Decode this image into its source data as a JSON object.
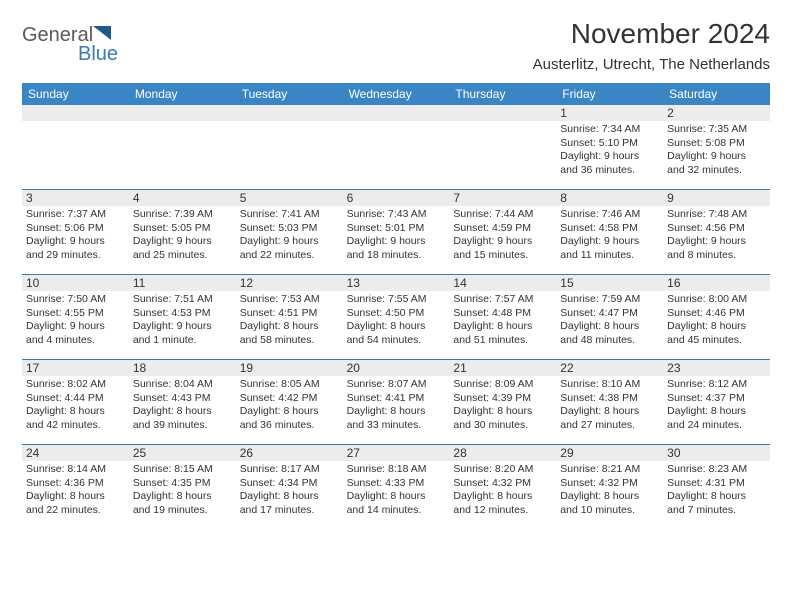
{
  "brand": {
    "part1": "General",
    "part2": "Blue"
  },
  "title": "November 2024",
  "location": "Austerlitz, Utrecht, The Netherlands",
  "colors": {
    "header_bg": "#3a86c4",
    "header_text": "#ffffff",
    "band_bg": "#ececec",
    "rule": "#3a7ab8",
    "text": "#333333",
    "brand_gray": "#5a5a5a",
    "brand_blue": "#3a7ab8"
  },
  "days_of_week": [
    "Sunday",
    "Monday",
    "Tuesday",
    "Wednesday",
    "Thursday",
    "Friday",
    "Saturday"
  ],
  "weeks": [
    [
      {
        "blank": true
      },
      {
        "blank": true
      },
      {
        "blank": true
      },
      {
        "blank": true
      },
      {
        "blank": true
      },
      {
        "n": "1",
        "sr": "Sunrise: 7:34 AM",
        "ss": "Sunset: 5:10 PM",
        "dl": "Daylight: 9 hours and 36 minutes."
      },
      {
        "n": "2",
        "sr": "Sunrise: 7:35 AM",
        "ss": "Sunset: 5:08 PM",
        "dl": "Daylight: 9 hours and 32 minutes."
      }
    ],
    [
      {
        "n": "3",
        "sr": "Sunrise: 7:37 AM",
        "ss": "Sunset: 5:06 PM",
        "dl": "Daylight: 9 hours and 29 minutes."
      },
      {
        "n": "4",
        "sr": "Sunrise: 7:39 AM",
        "ss": "Sunset: 5:05 PM",
        "dl": "Daylight: 9 hours and 25 minutes."
      },
      {
        "n": "5",
        "sr": "Sunrise: 7:41 AM",
        "ss": "Sunset: 5:03 PM",
        "dl": "Daylight: 9 hours and 22 minutes."
      },
      {
        "n": "6",
        "sr": "Sunrise: 7:43 AM",
        "ss": "Sunset: 5:01 PM",
        "dl": "Daylight: 9 hours and 18 minutes."
      },
      {
        "n": "7",
        "sr": "Sunrise: 7:44 AM",
        "ss": "Sunset: 4:59 PM",
        "dl": "Daylight: 9 hours and 15 minutes."
      },
      {
        "n": "8",
        "sr": "Sunrise: 7:46 AM",
        "ss": "Sunset: 4:58 PM",
        "dl": "Daylight: 9 hours and 11 minutes."
      },
      {
        "n": "9",
        "sr": "Sunrise: 7:48 AM",
        "ss": "Sunset: 4:56 PM",
        "dl": "Daylight: 9 hours and 8 minutes."
      }
    ],
    [
      {
        "n": "10",
        "sr": "Sunrise: 7:50 AM",
        "ss": "Sunset: 4:55 PM",
        "dl": "Daylight: 9 hours and 4 minutes."
      },
      {
        "n": "11",
        "sr": "Sunrise: 7:51 AM",
        "ss": "Sunset: 4:53 PM",
        "dl": "Daylight: 9 hours and 1 minute."
      },
      {
        "n": "12",
        "sr": "Sunrise: 7:53 AM",
        "ss": "Sunset: 4:51 PM",
        "dl": "Daylight: 8 hours and 58 minutes."
      },
      {
        "n": "13",
        "sr": "Sunrise: 7:55 AM",
        "ss": "Sunset: 4:50 PM",
        "dl": "Daylight: 8 hours and 54 minutes."
      },
      {
        "n": "14",
        "sr": "Sunrise: 7:57 AM",
        "ss": "Sunset: 4:48 PM",
        "dl": "Daylight: 8 hours and 51 minutes."
      },
      {
        "n": "15",
        "sr": "Sunrise: 7:59 AM",
        "ss": "Sunset: 4:47 PM",
        "dl": "Daylight: 8 hours and 48 minutes."
      },
      {
        "n": "16",
        "sr": "Sunrise: 8:00 AM",
        "ss": "Sunset: 4:46 PM",
        "dl": "Daylight: 8 hours and 45 minutes."
      }
    ],
    [
      {
        "n": "17",
        "sr": "Sunrise: 8:02 AM",
        "ss": "Sunset: 4:44 PM",
        "dl": "Daylight: 8 hours and 42 minutes."
      },
      {
        "n": "18",
        "sr": "Sunrise: 8:04 AM",
        "ss": "Sunset: 4:43 PM",
        "dl": "Daylight: 8 hours and 39 minutes."
      },
      {
        "n": "19",
        "sr": "Sunrise: 8:05 AM",
        "ss": "Sunset: 4:42 PM",
        "dl": "Daylight: 8 hours and 36 minutes."
      },
      {
        "n": "20",
        "sr": "Sunrise: 8:07 AM",
        "ss": "Sunset: 4:41 PM",
        "dl": "Daylight: 8 hours and 33 minutes."
      },
      {
        "n": "21",
        "sr": "Sunrise: 8:09 AM",
        "ss": "Sunset: 4:39 PM",
        "dl": "Daylight: 8 hours and 30 minutes."
      },
      {
        "n": "22",
        "sr": "Sunrise: 8:10 AM",
        "ss": "Sunset: 4:38 PM",
        "dl": "Daylight: 8 hours and 27 minutes."
      },
      {
        "n": "23",
        "sr": "Sunrise: 8:12 AM",
        "ss": "Sunset: 4:37 PM",
        "dl": "Daylight: 8 hours and 24 minutes."
      }
    ],
    [
      {
        "n": "24",
        "sr": "Sunrise: 8:14 AM",
        "ss": "Sunset: 4:36 PM",
        "dl": "Daylight: 8 hours and 22 minutes."
      },
      {
        "n": "25",
        "sr": "Sunrise: 8:15 AM",
        "ss": "Sunset: 4:35 PM",
        "dl": "Daylight: 8 hours and 19 minutes."
      },
      {
        "n": "26",
        "sr": "Sunrise: 8:17 AM",
        "ss": "Sunset: 4:34 PM",
        "dl": "Daylight: 8 hours and 17 minutes."
      },
      {
        "n": "27",
        "sr": "Sunrise: 8:18 AM",
        "ss": "Sunset: 4:33 PM",
        "dl": "Daylight: 8 hours and 14 minutes."
      },
      {
        "n": "28",
        "sr": "Sunrise: 8:20 AM",
        "ss": "Sunset: 4:32 PM",
        "dl": "Daylight: 8 hours and 12 minutes."
      },
      {
        "n": "29",
        "sr": "Sunrise: 8:21 AM",
        "ss": "Sunset: 4:32 PM",
        "dl": "Daylight: 8 hours and 10 minutes."
      },
      {
        "n": "30",
        "sr": "Sunrise: 8:23 AM",
        "ss": "Sunset: 4:31 PM",
        "dl": "Daylight: 8 hours and 7 minutes."
      }
    ]
  ]
}
